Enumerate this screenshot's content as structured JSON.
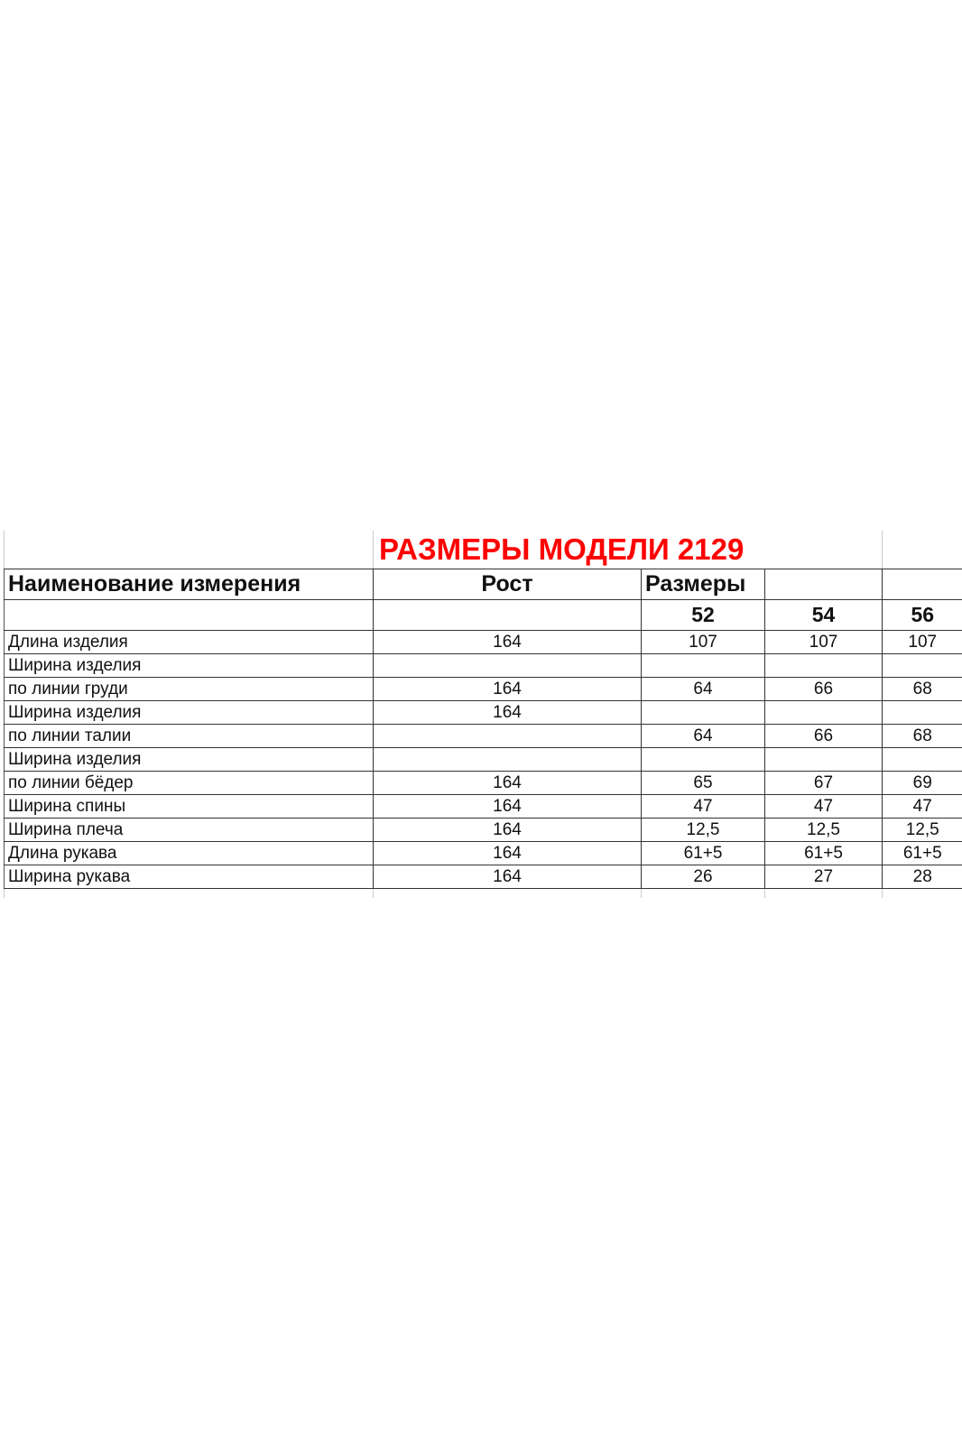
{
  "title": "РАЗМЕРЫ МОДЕЛИ 2129",
  "header": {
    "name": "Наименование измерения",
    "height": "Рост",
    "sizes": "Размеры"
  },
  "sizes": [
    "52",
    "54",
    "56"
  ],
  "rows": [
    {
      "name": "Длина изделия",
      "height": "164",
      "v": [
        "107",
        "107",
        "107"
      ]
    },
    {
      "name": "Ширина изделия",
      "height": "",
      "v": [
        "",
        "",
        ""
      ]
    },
    {
      "name": "по линии груди",
      "height": "164",
      "v": [
        "64",
        "66",
        "68"
      ]
    },
    {
      "name": "Ширина изделия",
      "height": "164",
      "v": [
        "",
        "",
        ""
      ]
    },
    {
      "name": "по линии талии",
      "height": "",
      "v": [
        "64",
        "66",
        "68"
      ]
    },
    {
      "name": "Ширина изделия",
      "height": "",
      "v": [
        "",
        "",
        ""
      ]
    },
    {
      "name": "по линии бёдер",
      "height": "164",
      "v": [
        "65",
        "67",
        "69"
      ]
    },
    {
      "name": "Ширина спины",
      "height": "164",
      "v": [
        "47",
        "47",
        "47"
      ]
    },
    {
      "name": "Ширина плеча",
      "height": "164",
      "v": [
        "12,5",
        "12,5",
        "12,5"
      ]
    },
    {
      "name": "Длина рукава",
      "height": "164",
      "v": [
        "61+5",
        "61+5",
        "61+5"
      ]
    },
    {
      "name": "Ширина рукава",
      "height": "164",
      "v": [
        "26",
        "27",
        "28"
      ]
    }
  ]
}
